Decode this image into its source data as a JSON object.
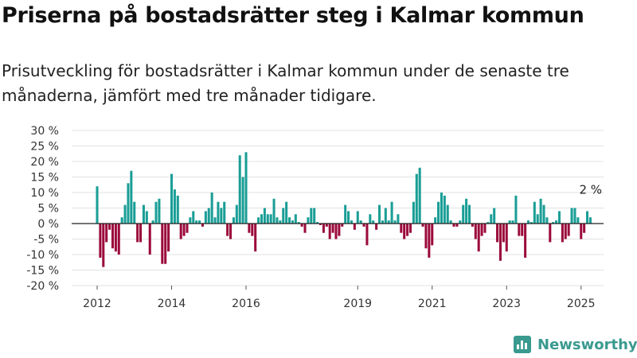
{
  "page": {
    "title": "Priserna på bostadsrätter steg i Kalmar kommun",
    "subtitle": "Prisutveckling för bostadsrätter i Kalmar kommun under de senaste tre månaderna, jämfört med tre månader tidigare.",
    "brand": "Newsworthy"
  },
  "chart_data": {
    "type": "bar",
    "title": "Priserna på bostadsrätter steg i Kalmar kommun",
    "subtitle": "Prisutveckling för bostadsrätter i Kalmar kommun under de senaste tre månaderna, jämfört med tre månader tidigare.",
    "xlabel": "",
    "ylabel": "",
    "y_unit": "%",
    "ylim": [
      -20,
      30
    ],
    "y_ticks": [
      30,
      25,
      20,
      15,
      10,
      5,
      0,
      -5,
      -10,
      -15,
      -20
    ],
    "y_tick_labels": [
      "30 %",
      "25 %",
      "20 %",
      "15 %",
      "10 %",
      "5 %",
      "0 %",
      "-5 %",
      "-10 %",
      "-15 %",
      "-20 %"
    ],
    "x_range": [
      "2012-01",
      "2025-04"
    ],
    "x_ticks": [
      {
        "label": "2012",
        "date": "2012-01"
      },
      {
        "label": "2014",
        "date": "2014-01"
      },
      {
        "label": "2016",
        "date": "2016-01"
      },
      {
        "label": "2019",
        "date": "2019-01"
      },
      {
        "label": "2021",
        "date": "2021-01"
      },
      {
        "label": "2023",
        "date": "2023-01"
      },
      {
        "label": "2025",
        "date": "2025-01"
      }
    ],
    "grid": "horizontal",
    "colors": {
      "positive": "#1a9e96",
      "negative": "#9b0a3b"
    },
    "annotation": {
      "label": "2 %",
      "date": "2025-01",
      "value": 2
    },
    "series": [
      {
        "values": [
          [
            "2012-01",
            12
          ],
          [
            "2012-02",
            -11
          ],
          [
            "2012-03",
            -14
          ],
          [
            "2012-04",
            -6
          ],
          [
            "2012-05",
            -2
          ],
          [
            "2012-06",
            -8
          ],
          [
            "2012-07",
            -9
          ],
          [
            "2012-08",
            -10
          ],
          [
            "2012-09",
            2
          ],
          [
            "2012-10",
            6
          ],
          [
            "2012-11",
            13
          ],
          [
            "2012-12",
            17
          ],
          [
            "2013-01",
            7
          ],
          [
            "2013-02",
            -6
          ],
          [
            "2013-03",
            -6
          ],
          [
            "2013-04",
            6
          ],
          [
            "2013-05",
            4
          ],
          [
            "2013-06",
            -10
          ],
          [
            "2013-07",
            1
          ],
          [
            "2013-08",
            7
          ],
          [
            "2013-09",
            8
          ],
          [
            "2013-10",
            -13
          ],
          [
            "2013-11",
            -13
          ],
          [
            "2013-12",
            -9
          ],
          [
            "2014-01",
            16
          ],
          [
            "2014-02",
            11
          ],
          [
            "2014-03",
            9
          ],
          [
            "2014-04",
            -5
          ],
          [
            "2014-05",
            -4
          ],
          [
            "2014-06",
            -3
          ],
          [
            "2014-07",
            2
          ],
          [
            "2014-08",
            4
          ],
          [
            "2014-09",
            1
          ],
          [
            "2014-10",
            1
          ],
          [
            "2014-11",
            -1
          ],
          [
            "2014-12",
            4
          ],
          [
            "2015-01",
            5
          ],
          [
            "2015-02",
            10
          ],
          [
            "2015-03",
            2
          ],
          [
            "2015-04",
            7
          ],
          [
            "2015-05",
            5
          ],
          [
            "2015-06",
            7
          ],
          [
            "2015-07",
            -4
          ],
          [
            "2015-08",
            -5
          ],
          [
            "2015-09",
            2
          ],
          [
            "2015-10",
            6
          ],
          [
            "2015-11",
            22
          ],
          [
            "2015-12",
            15
          ],
          [
            "2016-01",
            23
          ],
          [
            "2016-02",
            -3
          ],
          [
            "2016-03",
            -4
          ],
          [
            "2016-04",
            -9
          ],
          [
            "2016-05",
            2
          ],
          [
            "2016-06",
            3
          ],
          [
            "2016-07",
            5
          ],
          [
            "2016-08",
            3
          ],
          [
            "2016-09",
            3
          ],
          [
            "2016-10",
            8
          ],
          [
            "2016-11",
            2
          ],
          [
            "2016-12",
            1
          ],
          [
            "2017-01",
            5
          ],
          [
            "2017-02",
            7
          ],
          [
            "2017-03",
            2
          ],
          [
            "2017-04",
            1
          ],
          [
            "2017-05",
            3
          ],
          [
            "2017-06",
            0.5
          ],
          [
            "2017-07",
            -1
          ],
          [
            "2017-08",
            -3
          ],
          [
            "2017-09",
            2
          ],
          [
            "2017-10",
            5
          ],
          [
            "2017-11",
            5
          ],
          [
            "2017-12",
            0.5
          ],
          [
            "2018-01",
            -0.5
          ],
          [
            "2018-02",
            -3
          ],
          [
            "2018-03",
            -1
          ],
          [
            "2018-04",
            -5
          ],
          [
            "2018-05",
            -3
          ],
          [
            "2018-06",
            -5
          ],
          [
            "2018-07",
            -4
          ],
          [
            "2018-08",
            -1
          ],
          [
            "2018-09",
            6
          ],
          [
            "2018-10",
            4
          ],
          [
            "2018-11",
            1
          ],
          [
            "2018-12",
            -2
          ],
          [
            "2019-01",
            4
          ],
          [
            "2019-02",
            1
          ],
          [
            "2019-03",
            -1
          ],
          [
            "2019-04",
            -7
          ],
          [
            "2019-05",
            3
          ],
          [
            "2019-06",
            1
          ],
          [
            "2019-07",
            -2
          ],
          [
            "2019-08",
            6
          ],
          [
            "2019-09",
            1
          ],
          [
            "2019-10",
            5
          ],
          [
            "2019-11",
            1
          ],
          [
            "2019-12",
            7
          ],
          [
            "2020-01",
            1
          ],
          [
            "2020-02",
            3
          ],
          [
            "2020-03",
            -3
          ],
          [
            "2020-04",
            -5
          ],
          [
            "2020-05",
            -4
          ],
          [
            "2020-06",
            -3
          ],
          [
            "2020-07",
            7
          ],
          [
            "2020-08",
            16
          ],
          [
            "2020-09",
            18
          ],
          [
            "2020-10",
            -1
          ],
          [
            "2020-11",
            -8
          ],
          [
            "2020-12",
            -11
          ],
          [
            "2021-01",
            -7
          ],
          [
            "2021-02",
            2
          ],
          [
            "2021-03",
            7
          ],
          [
            "2021-04",
            10
          ],
          [
            "2021-05",
            9
          ],
          [
            "2021-06",
            6
          ],
          [
            "2021-07",
            1
          ],
          [
            "2021-08",
            -1
          ],
          [
            "2021-09",
            -1
          ],
          [
            "2021-10",
            1
          ],
          [
            "2021-11",
            6
          ],
          [
            "2021-12",
            8
          ],
          [
            "2022-01",
            6
          ],
          [
            "2022-02",
            -1
          ],
          [
            "2022-03",
            -5
          ],
          [
            "2022-04",
            -9
          ],
          [
            "2022-05",
            -4
          ],
          [
            "2022-06",
            -3
          ],
          [
            "2022-07",
            0.5
          ],
          [
            "2022-08",
            3
          ],
          [
            "2022-09",
            5
          ],
          [
            "2022-10",
            -6
          ],
          [
            "2022-11",
            -12
          ],
          [
            "2022-12",
            -6
          ],
          [
            "2023-01",
            -9
          ],
          [
            "2023-02",
            1
          ],
          [
            "2023-03",
            1
          ],
          [
            "2023-04",
            9
          ],
          [
            "2023-05",
            -4
          ],
          [
            "2023-06",
            -4
          ],
          [
            "2023-07",
            -11
          ],
          [
            "2023-08",
            1
          ],
          [
            "2023-09",
            0.5
          ],
          [
            "2023-10",
            7
          ],
          [
            "2023-11",
            3
          ],
          [
            "2023-12",
            8
          ],
          [
            "2024-01",
            6
          ],
          [
            "2024-02",
            2
          ],
          [
            "2024-03",
            -6
          ],
          [
            "2024-04",
            0.5
          ],
          [
            "2024-05",
            1
          ],
          [
            "2024-06",
            4
          ],
          [
            "2024-07",
            -6
          ],
          [
            "2024-08",
            -5
          ],
          [
            "2024-09",
            -4
          ],
          [
            "2024-10",
            5
          ],
          [
            "2024-11",
            5
          ],
          [
            "2024-12",
            2
          ],
          [
            "2025-01",
            -5
          ],
          [
            "2025-02",
            -3
          ],
          [
            "2025-03",
            4
          ],
          [
            "2025-04",
            2
          ]
        ]
      }
    ]
  }
}
